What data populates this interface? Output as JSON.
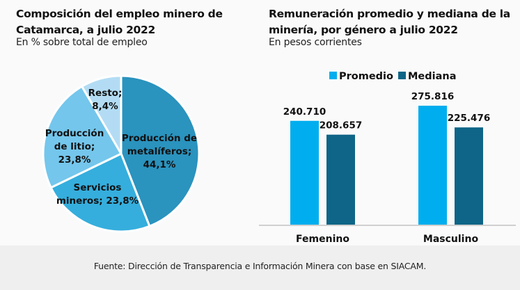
{
  "pie_title_line1": "Composición del empleo minero de",
  "pie_title_line2": "Catamarca, a julio 2022",
  "pie_subtitle": "En % sobre total de empleo",
  "bar_title_line1": "Remuneración promedio y mediana de la",
  "bar_title_line2": "minería, por género a julio 2022",
  "bar_subtitle": "En pesos corrientes",
  "footer": "Fuente: Dirección de Transparencia e Información Minera con base en SIACAM.",
  "chart_data": [
    {
      "type": "pie",
      "title": "Composición del empleo minero de Catamarca, a julio 2022",
      "subtitle": "En % sobre total de empleo",
      "slices": [
        {
          "label_lines": [
            "Producción de",
            "metalíferos;",
            "44,1%"
          ],
          "name": "Producción de metalíferos",
          "value": 44.1,
          "color": "#2a93be"
        },
        {
          "label_lines": [
            "Servicios",
            "mineros; 23,8%"
          ],
          "name": "Servicios mineros",
          "value": 23.8,
          "color": "#35aedd"
        },
        {
          "label_lines": [
            "Producción",
            "de litio;",
            "23,8%"
          ],
          "name": "Producción de litio",
          "value": 23.8,
          "color": "#74c6ec"
        },
        {
          "label_lines": [
            "Resto;",
            "8,4%"
          ],
          "name": "Resto",
          "value": 8.4,
          "color": "#b3dcf4"
        }
      ]
    },
    {
      "type": "bar",
      "title": "Remuneración promedio y mediana de la minería, por género a julio 2022",
      "subtitle": "En pesos corrientes",
      "categories": [
        "Femenino",
        "Masculino"
      ],
      "series": [
        {
          "name": "Promedio",
          "values": [
            240710,
            275816
          ],
          "labels": [
            "240.710",
            "275.816"
          ],
          "color": "#00aeef"
        },
        {
          "name": "Mediana",
          "values": [
            208657,
            225476
          ],
          "labels": [
            "208.657",
            "225.476"
          ],
          "color": "#0e6587"
        }
      ],
      "legend": "top-center",
      "ylim": [
        0,
        275816
      ],
      "grid": false
    }
  ]
}
